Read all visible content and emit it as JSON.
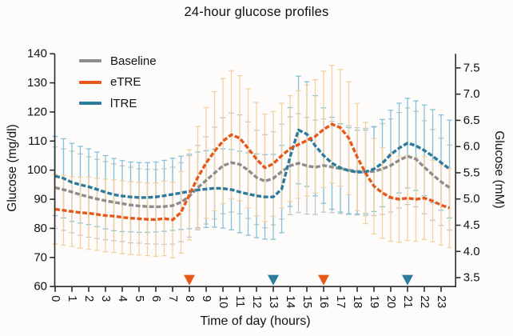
{
  "chart_data": {
    "type": "line",
    "title": "24-hour glucose profiles",
    "xlabel": "Time of day (hours)",
    "ylabel_left": "Glucose (mg/dl)",
    "ylabel_right": "Glucose (mM)",
    "ylim_left": [
      60,
      140
    ],
    "ylim_right_mM": [
      3.5,
      7.5
    ],
    "y_ticks_left": [
      60,
      70,
      80,
      90,
      100,
      110,
      120,
      130,
      140
    ],
    "y_ticks_right": [
      3.5,
      4.0,
      4.5,
      5.0,
      5.5,
      6.0,
      6.5,
      7.0,
      7.5
    ],
    "x_ticks": [
      0,
      1,
      2,
      3,
      4,
      5,
      6,
      7,
      8,
      9,
      10,
      11,
      12,
      13,
      14,
      15,
      16,
      17,
      18,
      19,
      20,
      21,
      22,
      23
    ],
    "grid": false,
    "legend_position": "upper-left-inside",
    "mM_per_mgdl": 0.0555,
    "x": [
      0,
      0.5,
      1,
      1.5,
      2,
      2.5,
      3,
      3.5,
      4,
      4.5,
      5,
      5.5,
      6,
      6.5,
      7,
      7.5,
      8,
      8.5,
      9,
      9.5,
      10,
      10.5,
      11,
      11.5,
      12,
      12.5,
      13,
      13.5,
      14,
      14.5,
      15,
      15.5,
      16,
      16.5,
      17,
      17.5,
      18,
      18.5,
      19,
      19.5,
      20,
      20.5,
      21,
      21.5,
      22,
      22.5,
      23,
      23.5
    ],
    "series": [
      {
        "name": "Baseline",
        "color": "#8d8d8d",
        "error_color": "#c3c3c3",
        "mean": [
          94,
          93.3,
          92.5,
          91.6,
          90.8,
          90.1,
          89.5,
          89,
          88.5,
          88,
          87.7,
          87.5,
          87.4,
          87.5,
          87.8,
          89,
          91,
          94,
          96.5,
          99,
          101.5,
          102.6,
          102,
          100,
          97.5,
          96.2,
          97.2,
          99.5,
          101.5,
          102.4,
          101.5,
          101,
          101.6,
          101.1,
          100.5,
          100,
          99.6,
          99.4,
          99.6,
          100.4,
          101.6,
          103.4,
          104.8,
          103.8,
          101,
          98.4,
          96,
          94
        ],
        "sd": [
          14,
          14,
          14,
          14,
          13.8,
          13.6,
          13.4,
          13.2,
          13,
          13,
          12.8,
          12.8,
          12.8,
          13,
          13.2,
          13.6,
          14,
          14.5,
          15,
          15.8,
          16.5,
          17,
          17,
          16.6,
          16.2,
          16,
          16,
          16.3,
          16.8,
          17,
          16.6,
          16.2,
          16,
          15.7,
          15.4,
          15.2,
          15,
          15,
          15.2,
          15.6,
          16,
          16.4,
          16.6,
          16.4,
          16,
          15.6,
          15,
          14.6
        ]
      },
      {
        "name": "eTRE",
        "color": "#e6581a",
        "error_color": "#f2d0a0",
        "mean": [
          86.6,
          86.2,
          85.8,
          85.4,
          85.2,
          84.8,
          84.4,
          84.2,
          83.8,
          83.5,
          83.3,
          83.1,
          83,
          83.4,
          82.9,
          85.5,
          91.5,
          97.5,
          102.5,
          106.5,
          110,
          112.2,
          111,
          107.5,
          103.8,
          100.8,
          102.2,
          105,
          107.4,
          108.8,
          110.2,
          111.6,
          114,
          115.8,
          114.6,
          111,
          104.5,
          99,
          94.5,
          92.2,
          90.6,
          90,
          90.4,
          90,
          90.4,
          89.4,
          88,
          87
        ],
        "sd": [
          12,
          12,
          12,
          12.2,
          12.4,
          12.4,
          12.5,
          12.5,
          12.5,
          12.5,
          12.5,
          12.5,
          12.6,
          12.8,
          13,
          14,
          15.5,
          17.5,
          19,
          20.5,
          21.5,
          22,
          21.5,
          20.5,
          19.5,
          18.5,
          18,
          18,
          18.2,
          18.5,
          19,
          19.5,
          20,
          20.2,
          20,
          19.4,
          18.4,
          17.4,
          16.4,
          15.6,
          15,
          14.8,
          14.6,
          14.4,
          14.2,
          14,
          13.8,
          13.6
        ]
      },
      {
        "name": "lTRE",
        "color": "#2c7b9c",
        "error_color": "#80c0d8",
        "mean": [
          98,
          97.2,
          95.8,
          95,
          94.3,
          93.4,
          92.4,
          91.6,
          91.1,
          90.8,
          90.6,
          90.6,
          90.8,
          91.2,
          91.7,
          92.2,
          92.7,
          93.2,
          93.5,
          93.8,
          93.7,
          93.3,
          92.5,
          91.8,
          91.2,
          90.8,
          90.8,
          93.5,
          104.5,
          113.8,
          112.4,
          108.4,
          105,
          102.4,
          100.8,
          99.8,
          99.3,
          99.4,
          100.4,
          102.4,
          105.4,
          107.6,
          109.3,
          108.4,
          106.8,
          104.8,
          102.6,
          100.4
        ],
        "sd": [
          13.6,
          13.6,
          13.4,
          13.2,
          13,
          12.8,
          12.6,
          12.4,
          12.2,
          12,
          12,
          12,
          12,
          12.2,
          12.4,
          12.6,
          12.8,
          13,
          13.2,
          13.4,
          13.6,
          13.8,
          14,
          14.2,
          14.4,
          14.5,
          14.6,
          15,
          17,
          18.5,
          18,
          17.2,
          16.4,
          15.8,
          15.2,
          14.8,
          14.4,
          14.4,
          14.6,
          15,
          15.2,
          15.4,
          15.4,
          15.4,
          15.6,
          16,
          16.4,
          16.8
        ]
      }
    ],
    "meal_markers": [
      {
        "hour": 8,
        "series": "eTRE"
      },
      {
        "hour": 13,
        "series": "lTRE"
      },
      {
        "hour": 16,
        "series": "eTRE"
      },
      {
        "hour": 21,
        "series": "lTRE"
      }
    ],
    "colors": {
      "axis": "#2b2b2b",
      "text": "#111111",
      "background": "#fdfcfa"
    }
  }
}
